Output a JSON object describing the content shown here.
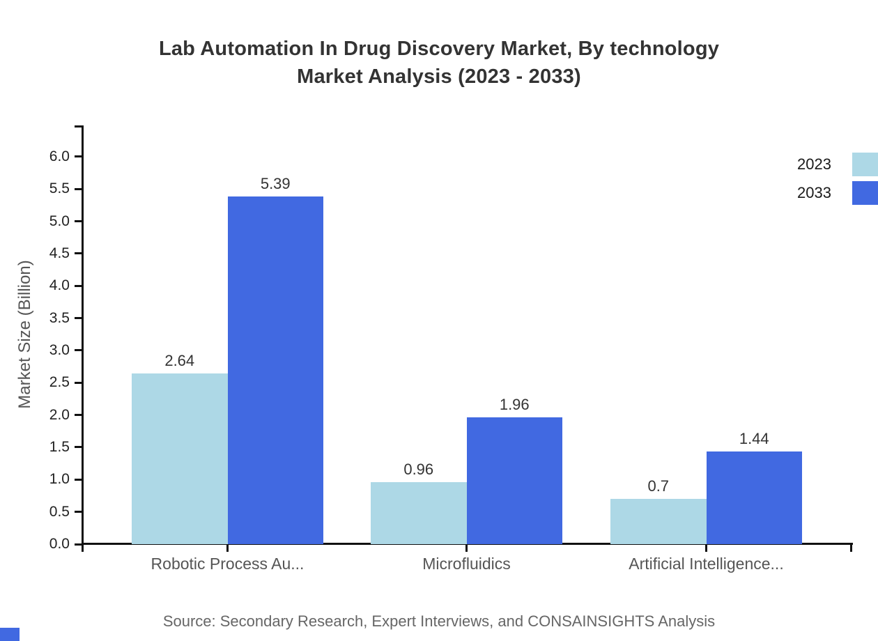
{
  "title": {
    "line1": "Lab Automation In Drug Discovery Market, By technology",
    "line2": "Market Analysis (2023 - 2033)"
  },
  "legend": {
    "items": [
      {
        "label": "2023",
        "color": "#add8e6"
      },
      {
        "label": "2033",
        "color": "#4169e1"
      }
    ]
  },
  "source": "Source: Secondary Research, Expert Interviews, and CONSAINSIGHTS Analysis",
  "colors": {
    "series_2023": "#add8e6",
    "series_2033": "#4169e1",
    "axis": "#111111",
    "title_text": "#333333",
    "muted_text": "#555555",
    "source_text": "#666666",
    "corner_accent": "#4169e1"
  },
  "chart_data": {
    "type": "bar",
    "title": "Lab Automation In Drug Discovery Market, By technology Market Analysis (2023 - 2033)",
    "categories": [
      "Robotic Process Au...",
      "Microfluidics",
      "Artificial Intelligence..."
    ],
    "series": [
      {
        "name": "2023",
        "color": "#add8e6",
        "values": [
          2.64,
          0.96,
          0.7
        ]
      },
      {
        "name": "2033",
        "color": "#4169e1",
        "values": [
          5.39,
          1.96,
          1.44
        ]
      }
    ],
    "xlabel": "",
    "ylabel": "Market Size (Billion)",
    "ylim": [
      0,
      6.5
    ],
    "yticks": [
      0.0,
      0.5,
      1.0,
      1.5,
      2.0,
      2.5,
      3.0,
      3.5,
      4.0,
      4.5,
      5.0,
      5.5,
      6.0
    ],
    "value_labels": true,
    "grid": false,
    "legend_position": "top-right"
  }
}
